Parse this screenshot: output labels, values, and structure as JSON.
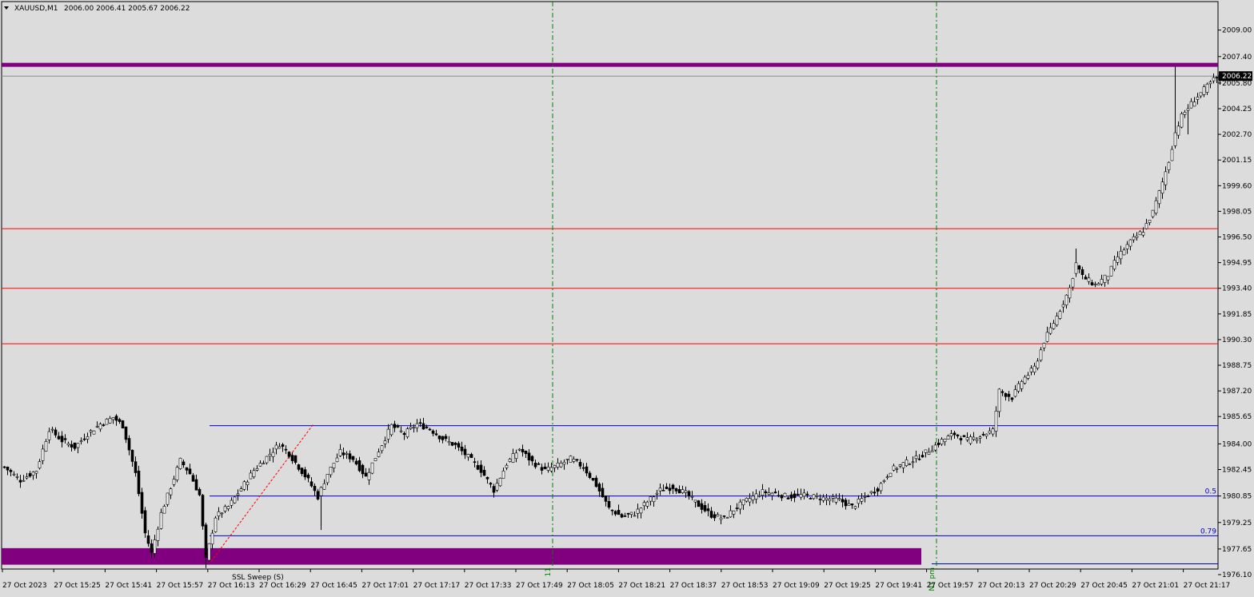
{
  "header": {
    "symbol_label": "XAUUSD,M1",
    "ohlc_label": "2006.00 2006.41 2005.67 2006.22"
  },
  "colors": {
    "background": "#dcdcdc",
    "candle_up": "#ffffff",
    "candle_down": "#000000",
    "candle_outline": "#000000",
    "purple": "#800080",
    "red_line": "#ff0000",
    "blue_line": "#0000cd",
    "green_vline": "#008000",
    "bid_line": "#8c8c8c"
  },
  "chart_data": {
    "type": "candlestick",
    "ylim": [
      1976.1,
      2009.9
    ],
    "y_ticks": [
      "2009.00",
      "2007.40",
      "2005.80",
      "2004.25",
      "2002.70",
      "2001.15",
      "1999.60",
      "1998.05",
      "1996.50",
      "1994.95",
      "1993.40",
      "1991.85",
      "1990.30",
      "1988.75",
      "1987.20",
      "1985.65",
      "1984.00",
      "1982.45",
      "1980.85",
      "1979.25",
      "1977.65",
      "1976.10"
    ],
    "x_ticks": [
      "27 Oct 2023",
      "27 Oct 15:25",
      "27 Oct 15:41",
      "27 Oct 15:57",
      "27 Oct 16:13",
      "27 Oct 16:29",
      "27 Oct 16:45",
      "27 Oct 17:01",
      "27 Oct 17:17",
      "27 Oct 17:33",
      "27 Oct 17:49",
      "27 Oct 18:05",
      "27 Oct 18:21",
      "27 Oct 18:37",
      "27 Oct 18:53",
      "27 Oct 19:09",
      "27 Oct 19:25",
      "27 Oct 19:41",
      "27 Oct 19:57",
      "27 Oct 20:13",
      "27 Oct 20:29",
      "27 Oct 20:45",
      "27 Oct 21:01",
      "27 Oct 21:17"
    ],
    "current_price": 2006.22,
    "current_price_label": "2006.22",
    "close_path": [
      [
        0,
        1982.6
      ],
      [
        5,
        1981.8
      ],
      [
        10,
        1982.4
      ],
      [
        14,
        1984.9
      ],
      [
        18,
        1984.2
      ],
      [
        22,
        1983.8
      ],
      [
        26,
        1984.6
      ],
      [
        30,
        1985.2
      ],
      [
        34,
        1985.6
      ],
      [
        37,
        1985.1
      ],
      [
        41,
        1982.2
      ],
      [
        44,
        1978.6
      ],
      [
        46,
        1977.4
      ],
      [
        49,
        1979.8
      ],
      [
        52,
        1981.4
      ],
      [
        55,
        1983.0
      ],
      [
        58,
        1982.2
      ],
      [
        61,
        1980.9
      ],
      [
        63,
        1977.0
      ],
      [
        66,
        1979.6
      ],
      [
        70,
        1980.2
      ],
      [
        74,
        1981.3
      ],
      [
        78,
        1982.4
      ],
      [
        82,
        1983.2
      ],
      [
        86,
        1984.0
      ],
      [
        89,
        1983.4
      ],
      [
        92,
        1982.6
      ],
      [
        95,
        1981.8
      ],
      [
        98,
        1980.8
      ],
      [
        101,
        1982.2
      ],
      [
        105,
        1983.5
      ],
      [
        109,
        1983.1
      ],
      [
        113,
        1982.0
      ],
      [
        117,
        1983.6
      ],
      [
        121,
        1985.1
      ],
      [
        125,
        1984.6
      ],
      [
        129,
        1985.2
      ],
      [
        133,
        1984.9
      ],
      [
        137,
        1984.3
      ],
      [
        141,
        1983.9
      ],
      [
        145,
        1983.2
      ],
      [
        149,
        1982.4
      ],
      [
        153,
        1981.2
      ],
      [
        157,
        1982.8
      ],
      [
        161,
        1983.7
      ],
      [
        165,
        1982.9
      ],
      [
        169,
        1982.4
      ],
      [
        173,
        1982.7
      ],
      [
        177,
        1983.1
      ],
      [
        181,
        1982.6
      ],
      [
        185,
        1981.5
      ],
      [
        189,
        1980.1
      ],
      [
        193,
        1979.6
      ],
      [
        197,
        1979.8
      ],
      [
        201,
        1980.5
      ],
      [
        205,
        1981.2
      ],
      [
        209,
        1981.4
      ],
      [
        213,
        1981.0
      ],
      [
        217,
        1980.3
      ],
      [
        221,
        1979.7
      ],
      [
        225,
        1979.5
      ],
      [
        229,
        1980.2
      ],
      [
        233,
        1980.7
      ],
      [
        237,
        1981.1
      ],
      [
        241,
        1981.0
      ],
      [
        245,
        1980.8
      ],
      [
        249,
        1980.9
      ],
      [
        253,
        1980.8
      ],
      [
        257,
        1980.7
      ],
      [
        261,
        1980.6
      ],
      [
        265,
        1980.2
      ],
      [
        269,
        1980.8
      ],
      [
        273,
        1981.3
      ],
      [
        277,
        1982.4
      ],
      [
        281,
        1982.8
      ],
      [
        285,
        1983.1
      ],
      [
        289,
        1983.6
      ],
      [
        293,
        1984.2
      ],
      [
        297,
        1984.6
      ],
      [
        301,
        1984.2
      ],
      [
        305,
        1984.5
      ],
      [
        309,
        1984.8
      ],
      [
        311,
        1987.2
      ],
      [
        315,
        1986.8
      ],
      [
        318,
        1987.8
      ],
      [
        322,
        1988.6
      ],
      [
        325,
        1990.2
      ],
      [
        329,
        1991.7
      ],
      [
        333,
        1993.4
      ],
      [
        335,
        1994.9
      ],
      [
        337,
        1994.1
      ],
      [
        341,
        1993.6
      ],
      [
        345,
        1994.2
      ],
      [
        348,
        1995.3
      ],
      [
        352,
        1996.2
      ],
      [
        356,
        1996.9
      ],
      [
        359,
        1998.0
      ],
      [
        362,
        1999.8
      ],
      [
        364,
        2001.1
      ],
      [
        366,
        2002.8
      ],
      [
        368,
        2003.8
      ],
      [
        370,
        2004.3
      ],
      [
        372,
        2004.8
      ],
      [
        375,
        2005.4
      ],
      [
        378,
        2006.0
      ],
      [
        381,
        2006.22
      ]
    ],
    "spikes": [
      {
        "i": 46,
        "low": 1977.1
      },
      {
        "i": 63,
        "low": 1976.5
      },
      {
        "i": 99,
        "low": 1978.8
      },
      {
        "i": 335,
        "high": 1995.8
      },
      {
        "i": 366,
        "high": 2006.8
      },
      {
        "i": 370,
        "low": 2002.7
      }
    ],
    "levels": [
      {
        "name": "purple-level-top",
        "price": 2006.9,
        "style": "thick-purple"
      },
      {
        "name": "red-level-1",
        "price": 1997.0,
        "style": "red"
      },
      {
        "name": "red-level-2",
        "price": 1993.4,
        "style": "red"
      },
      {
        "name": "red-level-3",
        "price": 1990.05,
        "style": "red"
      },
      {
        "name": "blue-level-high",
        "price": 1985.1,
        "style": "blue"
      },
      {
        "name": "blue-level-0-5",
        "price": 1980.85,
        "style": "blue",
        "label": "0.5"
      },
      {
        "name": "blue-level-0-79",
        "price": 1978.45,
        "style": "blue",
        "label": "0.79"
      },
      {
        "name": "blue-level-low",
        "price": 1976.75,
        "style": "blue"
      }
    ],
    "zone": {
      "name": "purple-demand-zone",
      "top": 1977.7,
      "bottom": 1976.7
    },
    "vlines": [
      {
        "name": "session-line-11",
        "time_index": 171,
        "label": "11"
      },
      {
        "name": "session-line-ny",
        "time_index": 291,
        "label": "13 | NY pm"
      }
    ],
    "fib_line": {
      "from": [
        65,
        1976.9
      ],
      "to": [
        97,
        1985.2
      ]
    },
    "annotation_text": "SSL Sweep (S)"
  }
}
